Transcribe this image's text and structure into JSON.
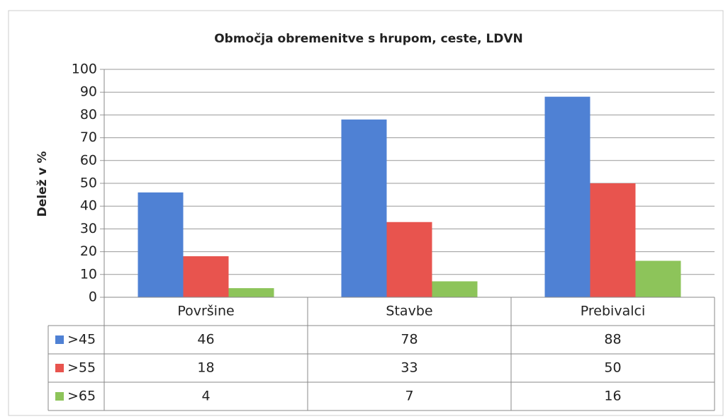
{
  "chart_data": {
    "type": "bar",
    "title": "Območja obremenitve s hrupom, ceste, LDVN",
    "y_label": "Delež v %",
    "categories": [
      "Površine",
      "Stavbe",
      "Prebivalci"
    ],
    "series": [
      {
        "name": ">45",
        "color": "#4f81d4",
        "values": [
          46,
          78,
          88
        ]
      },
      {
        "name": ">55",
        "color": "#e8544e",
        "values": [
          18,
          33,
          50
        ]
      },
      {
        "name": ">65",
        "color": "#8dc45a",
        "values": [
          4,
          7,
          16
        ]
      }
    ],
    "ylim": [
      0,
      100
    ],
    "yticks": [
      0,
      10,
      20,
      30,
      40,
      50,
      60,
      70,
      80,
      90,
      100
    ],
    "grid": true,
    "data_table": true
  }
}
